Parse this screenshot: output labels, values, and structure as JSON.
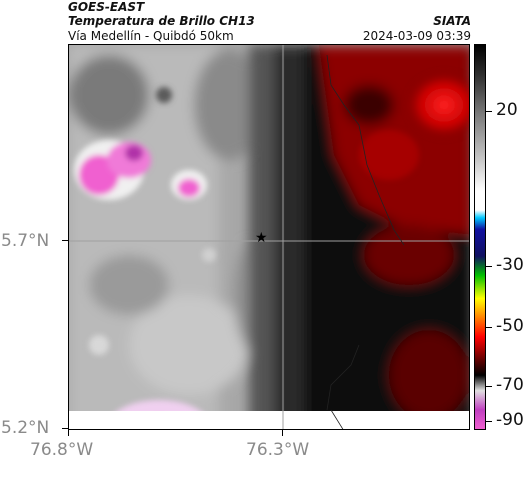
{
  "header": {
    "satellite": "GOES-EAST",
    "product": "Temperatura de Brillo CH13",
    "subtitle": "Vía Medellín - Quibdó 50km",
    "organization": "SIATA",
    "datetime": "2024-03-09 03:39"
  },
  "map": {
    "lon_range": [
      -76.8,
      -76.0
    ],
    "lat_range": [
      5.2,
      6.0
    ],
    "x_ticks": [
      {
        "value": -76.8,
        "label": "76.8°W"
      },
      {
        "value": -76.3,
        "label": "76.3°W"
      }
    ],
    "y_ticks": [
      {
        "value": 5.7,
        "label": "5.7°N"
      },
      {
        "value": 5.2,
        "label": "5.2°N"
      }
    ],
    "marker": {
      "symbol": "star",
      "lon": -76.28,
      "lat": 5.7
    }
  },
  "colorbar": {
    "range": [
      -95,
      35
    ],
    "ticks": [
      {
        "value": 20,
        "label": "20"
      },
      {
        "value": -30,
        "label": "-30"
      },
      {
        "value": -50,
        "label": "-50"
      },
      {
        "value": -70,
        "label": "-70"
      },
      {
        "value": -90,
        "label": "-90"
      }
    ],
    "colors": {
      "warm_low": "#c8c8c8",
      "warm_mid": "#707070",
      "dark": "#000000",
      "red": "#a00000",
      "bright_red": "#ff1a1a",
      "cyan": "#00c8ff",
      "blue": "#1010a0",
      "green": "#00c000",
      "yellow": "#ffff00",
      "orange": "#ff8000",
      "magenta": "#c040c0",
      "pink": "#f060d0"
    }
  }
}
